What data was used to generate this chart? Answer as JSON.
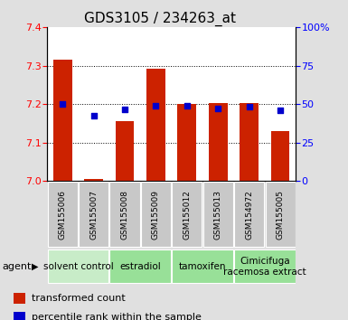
{
  "title": "GDS3105 / 234263_at",
  "samples": [
    "GSM155006",
    "GSM155007",
    "GSM155008",
    "GSM155009",
    "GSM155012",
    "GSM155013",
    "GSM154972",
    "GSM155005"
  ],
  "red_values": [
    7.315,
    7.005,
    7.155,
    7.293,
    7.2,
    7.203,
    7.202,
    7.13
  ],
  "blue_values": [
    7.2,
    7.17,
    7.185,
    7.196,
    7.195,
    7.188,
    7.192,
    7.183
  ],
  "ylim": [
    7.0,
    7.4
  ],
  "y_ticks": [
    7.0,
    7.1,
    7.2,
    7.3,
    7.4
  ],
  "y2_ticks": [
    0,
    25,
    50,
    75,
    100
  ],
  "y2_tick_labels": [
    "0",
    "25",
    "50",
    "75",
    "100%"
  ],
  "agents": [
    {
      "label": "solvent control",
      "start": 0,
      "end": 2
    },
    {
      "label": "estradiol",
      "start": 2,
      "end": 4
    },
    {
      "label": "tamoxifen",
      "start": 4,
      "end": 6
    },
    {
      "label": "Cimicifuga\nracemosa extract",
      "start": 6,
      "end": 8
    }
  ],
  "agent_colors": [
    "#c8ecc8",
    "#98e098",
    "#98e098",
    "#98e098"
  ],
  "bar_color": "#cc2200",
  "dot_color": "#0000cc",
  "bar_bottom": 7.0,
  "bg_color": "#e0e0e0",
  "plot_bg": "#ffffff",
  "title_fontsize": 11,
  "tick_fontsize": 8,
  "legend_fontsize": 8,
  "agent_label_fontsize": 7.5
}
